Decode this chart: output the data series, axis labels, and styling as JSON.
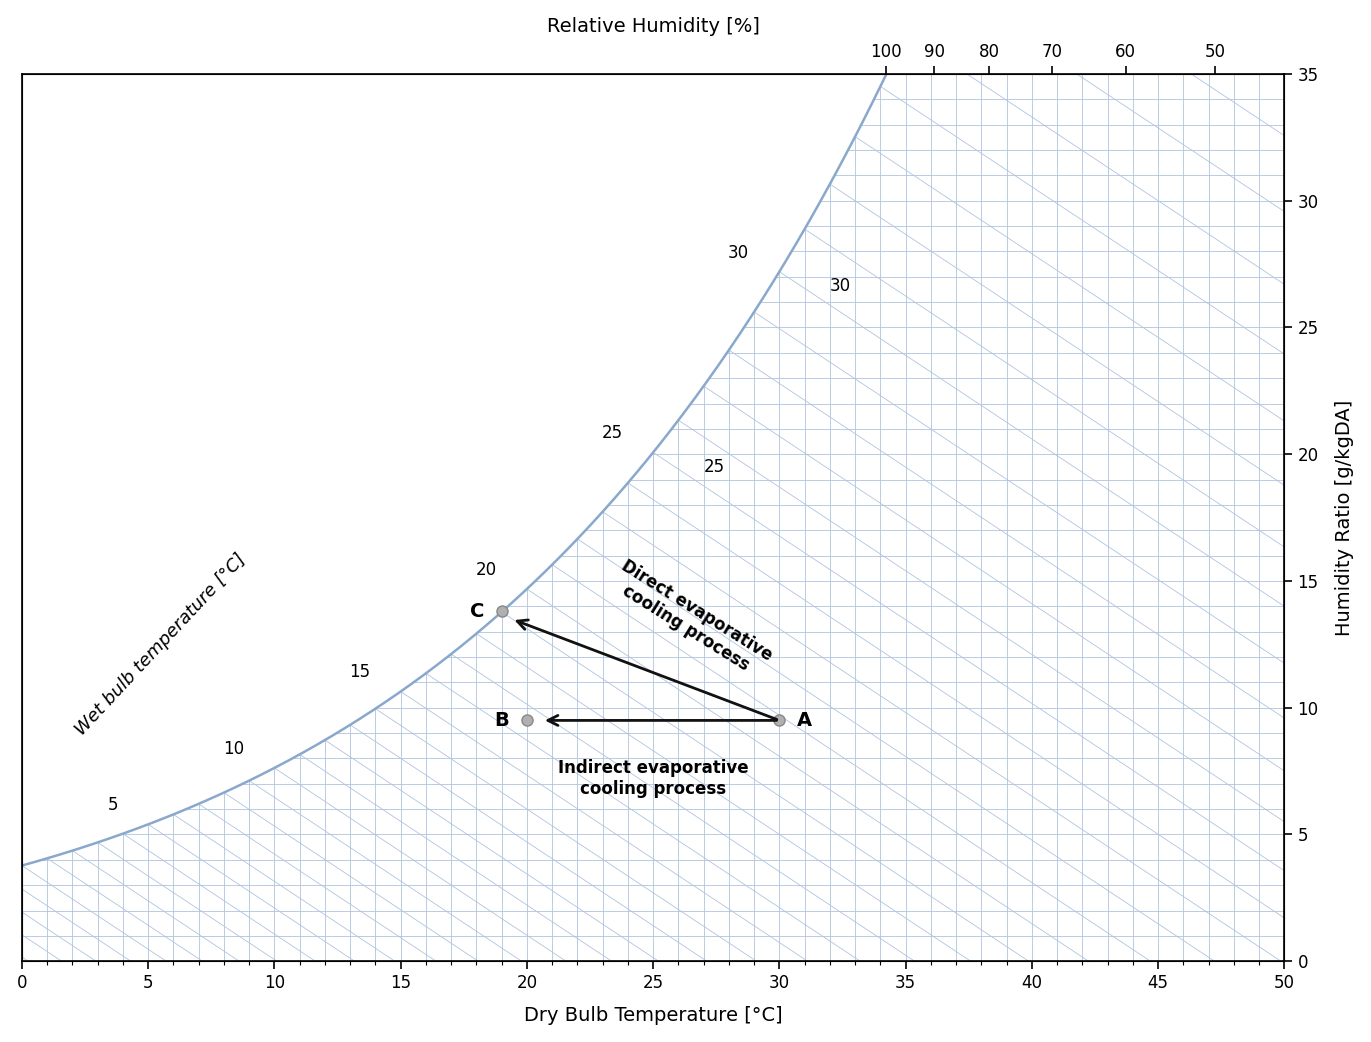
{
  "x_label": "Dry Bulb Temperature [°C]",
  "y_label": "Humidity Ratio [g/kgDA]",
  "top_label": "Relative Humidity [%]",
  "wb_axis_label": "Wet bulb temperature [°C]",
  "x_min": 0,
  "x_max": 50,
  "y_min": 0,
  "y_max": 35,
  "rh_top_ticks": [
    50,
    60,
    70,
    80,
    90,
    100
  ],
  "wb_label_vals": [
    5,
    10,
    15,
    20,
    25,
    30
  ],
  "grid_color": "#b0c4de",
  "sat_curve_color": "#8aa8cc",
  "point_A": [
    30.0,
    9.5
  ],
  "point_B": [
    20.0,
    9.5
  ],
  "point_C": [
    19.0,
    13.8
  ],
  "point_color": "#b0b0b0",
  "point_edge_color": "#888888",
  "arrow_color": "#111111",
  "direct_label": "Direct evaporative\ncooling process",
  "indirect_label": "Indirect evaporative\ncooling process",
  "fontsize_axis_label": 14,
  "fontsize_tick": 12,
  "fontsize_wb_label": 12,
  "fontsize_point_label": 14,
  "fontsize_process_label": 12,
  "background_color": "#ffffff"
}
